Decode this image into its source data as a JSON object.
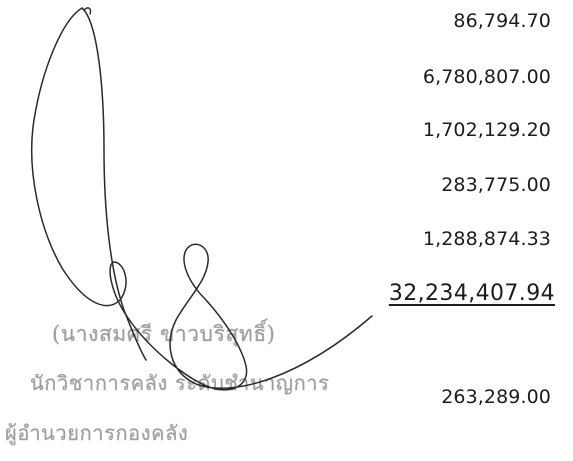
{
  "amounts": [
    "86,794.70",
    "6,780,807.00",
    "1,702,129.20",
    "283,775.00",
    "1,288,874.33"
  ],
  "total": "32,234,407.94",
  "after_total": "263,289.00",
  "stamp": {
    "name": "(นางสมศรี ขาวบริสุทธิ์)",
    "position": "นักวิชาการคลัง ระดับชำนาญการ",
    "role": "ผู้อำนวยการกองคลัง"
  },
  "colors": {
    "text": "#1c1c1c",
    "stamp": "#8d8d8d",
    "signature": "#2a2a2a"
  }
}
